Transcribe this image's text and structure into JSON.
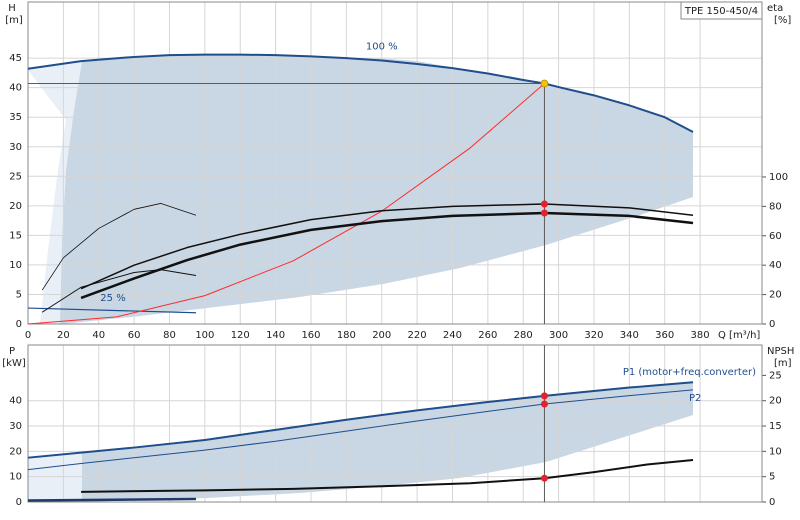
{
  "chart_data": [
    {
      "type": "line",
      "title": "TPE 150-450/4",
      "ylabel": "H",
      "yunit": "[m]",
      "y2label": "eta",
      "y2unit": "[%]",
      "xlabel": "Q [m³/h]",
      "xlim": [
        0,
        415
      ],
      "xticks": [
        0,
        20,
        40,
        60,
        80,
        100,
        120,
        140,
        160,
        180,
        200,
        220,
        240,
        260,
        280,
        300,
        320,
        340,
        360,
        380
      ],
      "ylim": [
        0,
        54.5
      ],
      "yticks": [
        0,
        5,
        10,
        15,
        20,
        25,
        30,
        35,
        40,
        45
      ],
      "y2lim": [
        0,
        219
      ],
      "y2ticks": [
        0,
        20,
        40,
        60,
        80,
        100
      ],
      "grid": true,
      "grid_color": "#d6d6d6",
      "duty_point": {
        "x": 292,
        "y": 40.7
      },
      "duty_line_color": "#5a5a5a",
      "series": [
        {
          "name": "100 %",
          "color": "#1f4e8c",
          "width": 2,
          "marker_color": "#f5c400",
          "x": [
            0,
            30,
            60,
            80,
            100,
            120,
            140,
            160,
            180,
            200,
            220,
            240,
            260,
            280,
            292,
            300,
            320,
            340,
            360,
            376
          ],
          "values": [
            43.2,
            44.5,
            45.2,
            45.5,
            45.6,
            45.6,
            45.5,
            45.3,
            45.0,
            44.6,
            44.0,
            43.3,
            42.4,
            41.3,
            40.7,
            40.1,
            38.7,
            37.0,
            35.0,
            32.5
          ]
        },
        {
          "name": "25 %",
          "color": "#1f4e8c",
          "width": 1.2,
          "x": [
            0,
            95
          ],
          "values": [
            2.7,
            1.9
          ]
        },
        {
          "color": "#ff2a2a",
          "width": 1,
          "x": [
            0,
            50,
            100,
            150,
            200,
            250,
            292
          ],
          "values": [
            0,
            1.2,
            4.8,
            10.7,
            19.1,
            29.8,
            40.7
          ]
        },
        {
          "axis": "y2",
          "color": "#111111",
          "width": 1.5,
          "marker_color": "#e8202a",
          "x": [
            30,
            60,
            90,
            120,
            160,
            200,
            240,
            292,
            340,
            376
          ],
          "values": [
            24,
            40,
            52,
            61,
            71,
            77,
            80,
            81.6,
            79,
            74
          ]
        },
        {
          "axis": "y2",
          "color": "#111111",
          "width": 2.5,
          "marker_color": "#e8202a",
          "x": [
            30,
            60,
            90,
            120,
            160,
            200,
            240,
            292,
            340,
            376
          ],
          "values": [
            17.7,
            31,
            43.5,
            54,
            64,
            70,
            73.5,
            75.5,
            73.5,
            68.7
          ]
        },
        {
          "axis": "y2",
          "color": "#111111",
          "width": 0.8,
          "x": [
            8,
            20,
            40,
            60,
            75,
            95
          ],
          "values": [
            23,
            45,
            65,
            78,
            82,
            74
          ]
        },
        {
          "axis": "y2",
          "color": "#111111",
          "width": 1,
          "x": [
            8,
            30,
            60,
            75,
            95
          ],
          "values": [
            8,
            25,
            35,
            37,
            33
          ]
        }
      ]
    },
    {
      "type": "line",
      "ylabel": "P",
      "yunit": "[kW]",
      "y2label": "NPSH",
      "y2unit": "[m]",
      "xlim": [
        0,
        415
      ],
      "xticks": [
        0,
        20,
        40,
        60,
        80,
        100,
        120,
        140,
        160,
        180,
        200,
        220,
        240,
        260,
        280,
        300,
        320,
        340,
        360,
        380
      ],
      "xtick_labels": false,
      "ylim": [
        0,
        62
      ],
      "yticks": [
        0,
        10,
        20,
        30,
        40
      ],
      "y2lim": [
        0,
        31
      ],
      "y2ticks": [
        0,
        5,
        10,
        15,
        20,
        25
      ],
      "grid": true,
      "grid_color": "#d6d6d6",
      "duty_point": {
        "x": 292
      },
      "duty_line_color": "#5a5a5a",
      "series": [
        {
          "name": "P1 (motor+freq.converter)",
          "color": "#1f4e8c",
          "width": 2,
          "marker_color": "#e8202a",
          "x": [
            0,
            30,
            60,
            100,
            140,
            180,
            220,
            260,
            292,
            340,
            376
          ],
          "values": [
            17.5,
            19.5,
            21.5,
            24.5,
            28.5,
            32.5,
            36.2,
            39.5,
            41.9,
            45.2,
            47.3
          ]
        },
        {
          "name": "P2",
          "color": "#1f4e8c",
          "width": 1,
          "marker_color": "#e8202a",
          "x": [
            0,
            30,
            100,
            140,
            180,
            220,
            260,
            292,
            340,
            376
          ],
          "values": [
            12.8,
            15.2,
            20.5,
            24,
            28,
            32,
            35.8,
            38.7,
            42,
            44.3
          ]
        },
        {
          "axis": "y2",
          "color": "#111111",
          "width": 2,
          "marker_color": "#e8202a",
          "x": [
            30,
            100,
            150,
            200,
            250,
            292,
            320,
            350,
            376
          ],
          "values": [
            2.0,
            2.3,
            2.6,
            3.1,
            3.7,
            4.7,
            5.9,
            7.4,
            8.3
          ]
        },
        {
          "color": "#1f3a66",
          "width": 2.5,
          "x": [
            0,
            95
          ],
          "values": [
            0.6,
            1.2
          ]
        }
      ]
    }
  ]
}
